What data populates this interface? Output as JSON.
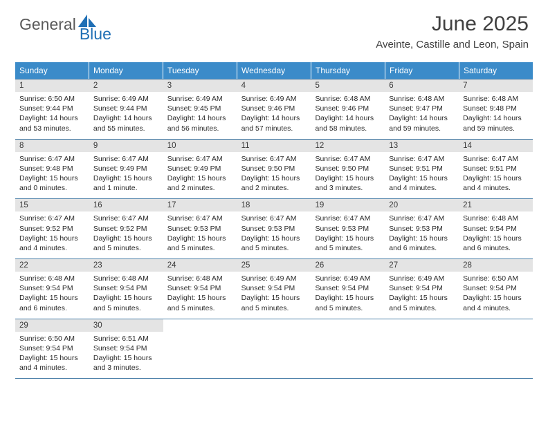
{
  "logo": {
    "word1": "General",
    "word2": "Blue",
    "word1_color": "#5a5a5a",
    "word2_color": "#1f6fb5",
    "icon_color": "#1f6fb5"
  },
  "header": {
    "title": "June 2025",
    "subtitle": "Aveinte, Castille and Leon, Spain"
  },
  "colors": {
    "header_bar": "#3b8bc9",
    "daynum_bg": "#e4e4e4",
    "rule": "#4a7fa8",
    "text": "#2a2a2a"
  },
  "weekdays": [
    "Sunday",
    "Monday",
    "Tuesday",
    "Wednesday",
    "Thursday",
    "Friday",
    "Saturday"
  ],
  "weeks": [
    [
      {
        "n": "1",
        "sr": "Sunrise: 6:50 AM",
        "ss": "Sunset: 9:44 PM",
        "dl": "Daylight: 14 hours and 53 minutes."
      },
      {
        "n": "2",
        "sr": "Sunrise: 6:49 AM",
        "ss": "Sunset: 9:44 PM",
        "dl": "Daylight: 14 hours and 55 minutes."
      },
      {
        "n": "3",
        "sr": "Sunrise: 6:49 AM",
        "ss": "Sunset: 9:45 PM",
        "dl": "Daylight: 14 hours and 56 minutes."
      },
      {
        "n": "4",
        "sr": "Sunrise: 6:49 AM",
        "ss": "Sunset: 9:46 PM",
        "dl": "Daylight: 14 hours and 57 minutes."
      },
      {
        "n": "5",
        "sr": "Sunrise: 6:48 AM",
        "ss": "Sunset: 9:46 PM",
        "dl": "Daylight: 14 hours and 58 minutes."
      },
      {
        "n": "6",
        "sr": "Sunrise: 6:48 AM",
        "ss": "Sunset: 9:47 PM",
        "dl": "Daylight: 14 hours and 59 minutes."
      },
      {
        "n": "7",
        "sr": "Sunrise: 6:48 AM",
        "ss": "Sunset: 9:48 PM",
        "dl": "Daylight: 14 hours and 59 minutes."
      }
    ],
    [
      {
        "n": "8",
        "sr": "Sunrise: 6:47 AM",
        "ss": "Sunset: 9:48 PM",
        "dl": "Daylight: 15 hours and 0 minutes."
      },
      {
        "n": "9",
        "sr": "Sunrise: 6:47 AM",
        "ss": "Sunset: 9:49 PM",
        "dl": "Daylight: 15 hours and 1 minute."
      },
      {
        "n": "10",
        "sr": "Sunrise: 6:47 AM",
        "ss": "Sunset: 9:49 PM",
        "dl": "Daylight: 15 hours and 2 minutes."
      },
      {
        "n": "11",
        "sr": "Sunrise: 6:47 AM",
        "ss": "Sunset: 9:50 PM",
        "dl": "Daylight: 15 hours and 2 minutes."
      },
      {
        "n": "12",
        "sr": "Sunrise: 6:47 AM",
        "ss": "Sunset: 9:50 PM",
        "dl": "Daylight: 15 hours and 3 minutes."
      },
      {
        "n": "13",
        "sr": "Sunrise: 6:47 AM",
        "ss": "Sunset: 9:51 PM",
        "dl": "Daylight: 15 hours and 4 minutes."
      },
      {
        "n": "14",
        "sr": "Sunrise: 6:47 AM",
        "ss": "Sunset: 9:51 PM",
        "dl": "Daylight: 15 hours and 4 minutes."
      }
    ],
    [
      {
        "n": "15",
        "sr": "Sunrise: 6:47 AM",
        "ss": "Sunset: 9:52 PM",
        "dl": "Daylight: 15 hours and 4 minutes."
      },
      {
        "n": "16",
        "sr": "Sunrise: 6:47 AM",
        "ss": "Sunset: 9:52 PM",
        "dl": "Daylight: 15 hours and 5 minutes."
      },
      {
        "n": "17",
        "sr": "Sunrise: 6:47 AM",
        "ss": "Sunset: 9:53 PM",
        "dl": "Daylight: 15 hours and 5 minutes."
      },
      {
        "n": "18",
        "sr": "Sunrise: 6:47 AM",
        "ss": "Sunset: 9:53 PM",
        "dl": "Daylight: 15 hours and 5 minutes."
      },
      {
        "n": "19",
        "sr": "Sunrise: 6:47 AM",
        "ss": "Sunset: 9:53 PM",
        "dl": "Daylight: 15 hours and 5 minutes."
      },
      {
        "n": "20",
        "sr": "Sunrise: 6:47 AM",
        "ss": "Sunset: 9:53 PM",
        "dl": "Daylight: 15 hours and 6 minutes."
      },
      {
        "n": "21",
        "sr": "Sunrise: 6:48 AM",
        "ss": "Sunset: 9:54 PM",
        "dl": "Daylight: 15 hours and 6 minutes."
      }
    ],
    [
      {
        "n": "22",
        "sr": "Sunrise: 6:48 AM",
        "ss": "Sunset: 9:54 PM",
        "dl": "Daylight: 15 hours and 6 minutes."
      },
      {
        "n": "23",
        "sr": "Sunrise: 6:48 AM",
        "ss": "Sunset: 9:54 PM",
        "dl": "Daylight: 15 hours and 5 minutes."
      },
      {
        "n": "24",
        "sr": "Sunrise: 6:48 AM",
        "ss": "Sunset: 9:54 PM",
        "dl": "Daylight: 15 hours and 5 minutes."
      },
      {
        "n": "25",
        "sr": "Sunrise: 6:49 AM",
        "ss": "Sunset: 9:54 PM",
        "dl": "Daylight: 15 hours and 5 minutes."
      },
      {
        "n": "26",
        "sr": "Sunrise: 6:49 AM",
        "ss": "Sunset: 9:54 PM",
        "dl": "Daylight: 15 hours and 5 minutes."
      },
      {
        "n": "27",
        "sr": "Sunrise: 6:49 AM",
        "ss": "Sunset: 9:54 PM",
        "dl": "Daylight: 15 hours and 5 minutes."
      },
      {
        "n": "28",
        "sr": "Sunrise: 6:50 AM",
        "ss": "Sunset: 9:54 PM",
        "dl": "Daylight: 15 hours and 4 minutes."
      }
    ],
    [
      {
        "n": "29",
        "sr": "Sunrise: 6:50 AM",
        "ss": "Sunset: 9:54 PM",
        "dl": "Daylight: 15 hours and 4 minutes."
      },
      {
        "n": "30",
        "sr": "Sunrise: 6:51 AM",
        "ss": "Sunset: 9:54 PM",
        "dl": "Daylight: 15 hours and 3 minutes."
      },
      {
        "empty": true
      },
      {
        "empty": true
      },
      {
        "empty": true
      },
      {
        "empty": true
      },
      {
        "empty": true
      }
    ]
  ]
}
